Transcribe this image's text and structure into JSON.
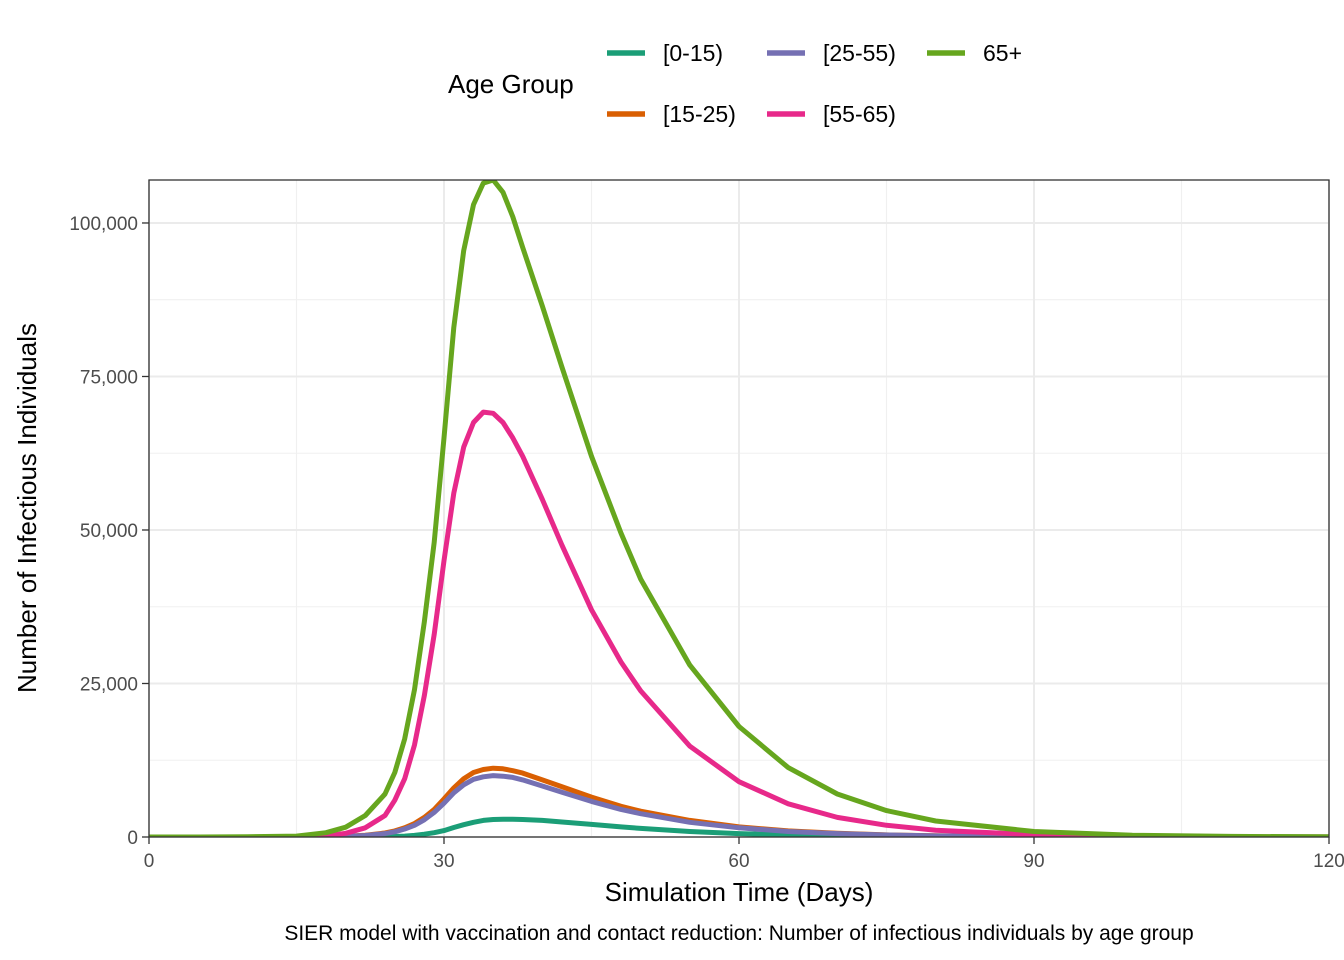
{
  "chart_data": {
    "type": "line",
    "caption": "SIER model with vaccination and contact reduction: Number of infectious individuals by age group",
    "xlabel": "Simulation Time (Days)",
    "ylabel": "Number of Infectious Individuals",
    "xlim": [
      0,
      120
    ],
    "ylim": [
      0,
      107000
    ],
    "x_ticks": [
      0,
      30,
      60,
      90,
      120
    ],
    "x_tick_labels": [
      "0",
      "30",
      "60",
      "90",
      "120"
    ],
    "y_ticks": [
      0,
      25000,
      50000,
      75000,
      100000
    ],
    "y_tick_labels": [
      "0",
      "25,000",
      "50,000",
      "75,000",
      "100,000"
    ],
    "grid": true,
    "legend": {
      "title": "Age Group",
      "position": "top"
    },
    "x": [
      0,
      5,
      10,
      15,
      18,
      20,
      22,
      24,
      25,
      26,
      27,
      28,
      29,
      30,
      31,
      32,
      33,
      34,
      35,
      36,
      37,
      38,
      40,
      42,
      45,
      48,
      50,
      55,
      60,
      65,
      70,
      75,
      80,
      90,
      100,
      110,
      120
    ],
    "series": [
      {
        "name": "[0-15)",
        "color": "#1B9E77",
        "values": [
          0,
          0,
          0,
          0,
          0,
          0,
          10,
          40,
          80,
          150,
          260,
          450,
          700,
          1050,
          1550,
          2000,
          2400,
          2700,
          2850,
          2900,
          2900,
          2850,
          2700,
          2450,
          2050,
          1650,
          1400,
          900,
          550,
          320,
          190,
          110,
          60,
          20,
          5,
          0,
          0
        ]
      },
      {
        "name": "[15-25)",
        "color": "#D95F02",
        "values": [
          0,
          0,
          0,
          0,
          40,
          120,
          300,
          650,
          1000,
          1500,
          2200,
          3200,
          4500,
          6200,
          8000,
          9500,
          10500,
          11000,
          11200,
          11100,
          10800,
          10400,
          9300,
          8200,
          6500,
          5000,
          4200,
          2700,
          1650,
          1000,
          600,
          350,
          200,
          70,
          20,
          5,
          0
        ]
      },
      {
        "name": "[25-55)",
        "color": "#7570B3",
        "values": [
          0,
          0,
          0,
          0,
          30,
          100,
          250,
          550,
          850,
          1300,
          1900,
          2800,
          4000,
          5500,
          7200,
          8500,
          9400,
          9800,
          10000,
          9900,
          9700,
          9300,
          8300,
          7300,
          5800,
          4500,
          3800,
          2400,
          1500,
          900,
          550,
          320,
          180,
          60,
          20,
          5,
          0
        ]
      },
      {
        "name": "[55-65)",
        "color": "#E7298A",
        "values": [
          0,
          0,
          0,
          0,
          200,
          600,
          1500,
          3500,
          6000,
          9500,
          15000,
          23000,
          33000,
          45000,
          56000,
          63500,
          67500,
          69200,
          69000,
          67500,
          65000,
          62000,
          55000,
          47500,
          37000,
          28500,
          23800,
          14800,
          9000,
          5400,
          3200,
          1900,
          1100,
          380,
          130,
          40,
          10
        ]
      },
      {
        "name": "65+",
        "color": "#66A61E",
        "values": [
          0,
          0,
          50,
          150,
          700,
          1600,
          3500,
          7000,
          10500,
          16000,
          24000,
          35000,
          48000,
          65000,
          83000,
          95500,
          103000,
          106500,
          107000,
          105000,
          101000,
          96000,
          86500,
          76500,
          62000,
          49500,
          42000,
          28000,
          18000,
          11300,
          7000,
          4300,
          2600,
          900,
          300,
          100,
          30
        ]
      }
    ]
  }
}
